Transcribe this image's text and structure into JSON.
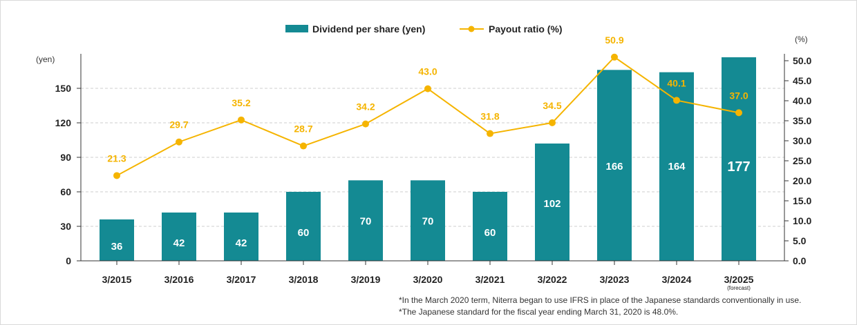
{
  "chart_data": {
    "type": "bar+line",
    "categories": [
      "3/2015",
      "3/2016",
      "3/2017",
      "3/2018",
      "3/2019",
      "3/2020",
      "3/2021",
      "3/2022",
      "3/2023",
      "3/2024",
      "3/2025"
    ],
    "category_sublabels": [
      "",
      "",
      "",
      "",
      "",
      "",
      "",
      "",
      "",
      "",
      "(forecast)"
    ],
    "series": [
      {
        "name": "Dividend per share (yen)",
        "type": "bar",
        "axis": "left",
        "color": "#148a93",
        "values": [
          36,
          42,
          42,
          60,
          70,
          70,
          60,
          102,
          166,
          164,
          177
        ],
        "labels": [
          "36",
          "42",
          "42",
          "60",
          "70",
          "70",
          "60",
          "102",
          "166",
          "164",
          "177"
        ]
      },
      {
        "name": "Payout ratio (%)",
        "type": "line",
        "axis": "right",
        "color": "#f5b400",
        "values": [
          21.3,
          29.7,
          35.2,
          28.7,
          34.2,
          43.0,
          31.8,
          34.5,
          50.9,
          40.1,
          37.0
        ],
        "labels": [
          "21.3",
          "29.7",
          "35.2",
          "28.7",
          "34.2",
          "43.0",
          "31.8",
          "34.5",
          "50.9",
          "40.1",
          "37.0"
        ]
      }
    ],
    "left_axis": {
      "unit": "(yen)",
      "ticks": [
        "0",
        "30",
        "60",
        "90",
        "120",
        "150"
      ]
    },
    "right_axis": {
      "unit": "(%)",
      "ticks": [
        "0.0",
        "5.0",
        "10.0",
        "15.0",
        "20.0",
        "25.0",
        "30.0",
        "35.0",
        "40.0",
        "45.0",
        "50.0"
      ]
    },
    "legend_position": "top-center",
    "grid": true
  },
  "notes": [
    "*In the March 2020 term, Niterra began to use IFRS in place of the Japanese standards conventionally in use.",
    "*The Japanese standard for the fiscal year ending March 31, 2020 is 48.0%."
  ],
  "colors": {
    "bar": "#148a93",
    "line": "#f5b400",
    "grid": "#cccccc",
    "axis": "#333333"
  }
}
